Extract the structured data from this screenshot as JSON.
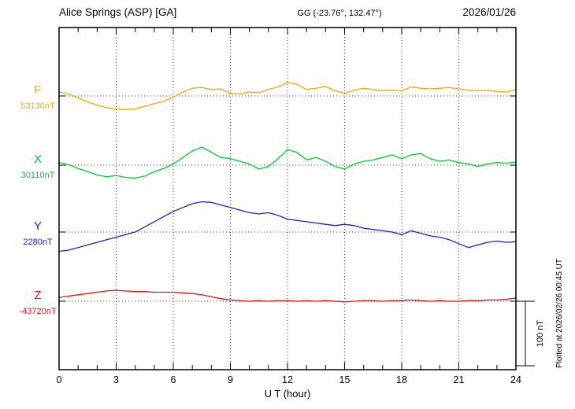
{
  "header": {
    "title": "Alice Springs (ASP)  [GA]",
    "coords": "GG (-23.76°, 132.47°)",
    "date": "2026/01/26"
  },
  "annotations": {
    "plotted_note": "Plotted at 2026/02/26 00:45 UT",
    "scale_bar_label": "100 nT"
  },
  "chart_data": {
    "type": "line",
    "title": "Alice Springs (ASP) [GA] 2026/01/26",
    "xlabel": "U T (hour)",
    "x": {
      "min": 0,
      "max": 24,
      "step_hours": 0.5,
      "ticks": [
        0,
        3,
        6,
        9,
        12,
        15,
        18,
        21,
        24
      ]
    },
    "scale": {
      "label": "100 nT",
      "nT": 100
    },
    "grid": "dotted-vertical-every-3h",
    "series": [
      {
        "name": "F",
        "baseline_label": "53130nT",
        "baseline_nT": 53130,
        "color": "#f5a800",
        "values_rel_nT": [
          6,
          3,
          -3,
          -9,
          -14,
          -18,
          -20,
          -21,
          -20,
          -16,
          -12,
          -8,
          -2,
          6,
          12,
          13,
          10,
          11,
          4,
          3,
          6,
          5,
          10,
          14,
          21,
          18,
          10,
          12,
          15,
          8,
          4,
          9,
          12,
          10,
          8,
          9,
          8,
          14,
          12,
          11,
          12,
          13,
          11,
          9,
          8,
          9,
          7,
          6,
          10
        ]
      },
      {
        "name": "X",
        "baseline_label": "30110nT",
        "baseline_nT": 30110,
        "color": "#00c832",
        "values_rel_nT": [
          4,
          1,
          -5,
          -10,
          -15,
          -18,
          -16,
          -19,
          -20,
          -17,
          -10,
          -5,
          2,
          12,
          22,
          28,
          20,
          12,
          10,
          6,
          2,
          -6,
          -2,
          10,
          24,
          20,
          8,
          12,
          6,
          -2,
          -6,
          2,
          6,
          8,
          12,
          16,
          10,
          16,
          18,
          10,
          6,
          8,
          4,
          2,
          -2,
          2,
          4,
          3,
          5
        ]
      },
      {
        "name": "Y",
        "baseline_label": "2280nT",
        "baseline_nT": 2280,
        "color": "#2020d0",
        "values_rel_nT": [
          -30,
          -28,
          -24,
          -20,
          -16,
          -12,
          -8,
          -4,
          0,
          8,
          16,
          24,
          32,
          38,
          44,
          47,
          46,
          42,
          38,
          34,
          30,
          28,
          30,
          26,
          20,
          18,
          16,
          14,
          12,
          10,
          12,
          10,
          6,
          4,
          2,
          0,
          -4,
          2,
          -2,
          -6,
          -8,
          -12,
          -18,
          -24,
          -20,
          -16,
          -14,
          -16,
          -15
        ]
      },
      {
        "name": "Z",
        "baseline_label": "-43720nT",
        "baseline_nT": -43720,
        "color": "#e81414",
        "values_rel_nT": [
          6,
          8,
          10,
          12,
          14,
          16,
          17,
          16,
          15,
          15,
          14,
          14,
          14,
          13,
          12,
          10,
          7,
          4,
          2,
          1,
          0,
          1,
          0,
          1,
          1,
          0,
          1,
          0,
          1,
          0,
          -1,
          0,
          1,
          1,
          0,
          1,
          1,
          2,
          1,
          0,
          1,
          0,
          0,
          1,
          1,
          2,
          2,
          3,
          5
        ]
      }
    ]
  }
}
